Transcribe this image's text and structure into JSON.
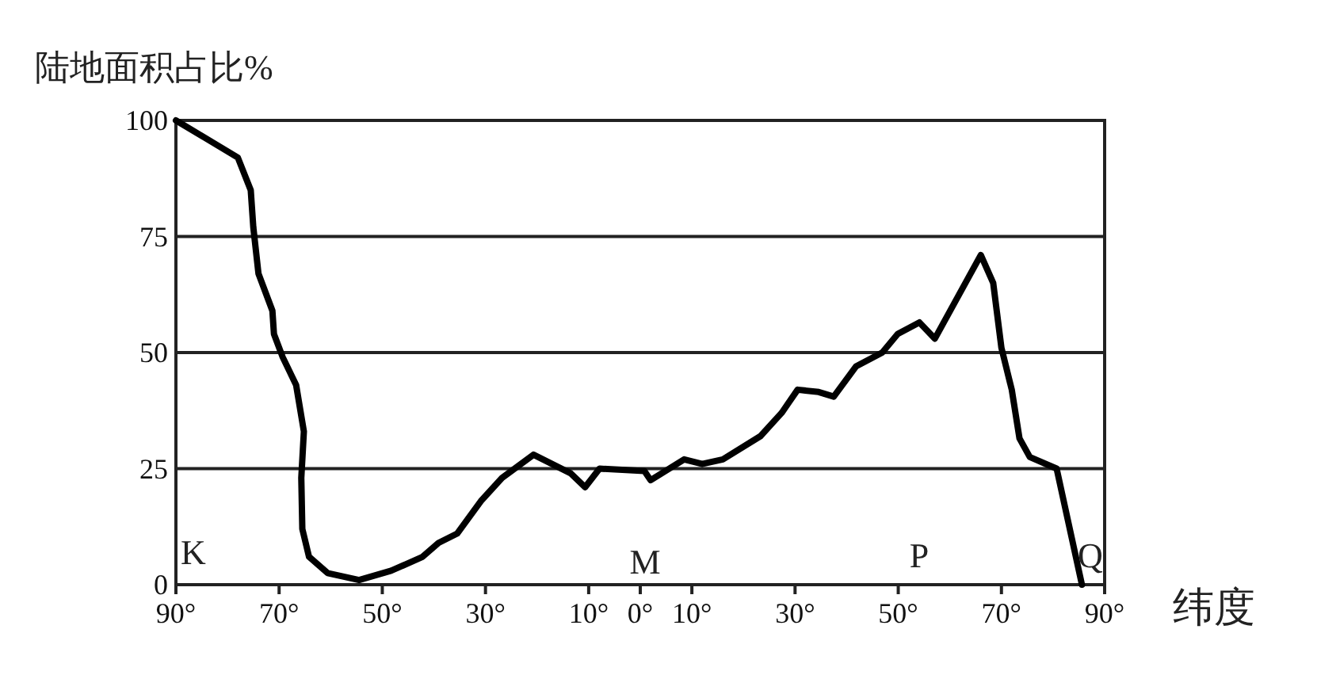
{
  "chart_data": {
    "type": "line",
    "ylabel": "陆地面积占比%",
    "xlabel": "纬度",
    "x": [
      -90,
      -78,
      -75.5,
      -75,
      -74,
      -71.3,
      -71,
      -69.3,
      -66.7,
      -65.2,
      -65.7,
      -65.5,
      -64.2,
      -60.6,
      -54.5,
      -48.3,
      -42.2,
      -39.1,
      -35.5,
      -30.9,
      -26.8,
      -20.7,
      -13.5,
      -10.7,
      -7.9,
      0.8,
      2,
      8.5,
      12,
      16,
      23.3,
      27.4,
      30.5,
      34.6,
      37.5,
      41.8,
      46.9,
      49.9,
      54.1,
      57.1,
      66,
      68.4,
      70,
      72,
      73.5,
      75.5,
      80.7,
      85.6
    ],
    "series": [
      {
        "color": "#000000",
        "values": [
          100,
          92,
          85,
          77,
          67,
          59,
          54,
          49,
          43,
          33,
          23,
          12,
          6,
          2.5,
          1,
          3,
          6,
          9,
          11,
          18,
          23,
          28,
          24,
          21,
          25,
          24.5,
          22.5,
          27,
          26,
          27,
          32,
          37,
          42,
          41.5,
          40.5,
          47,
          50,
          54,
          56.5,
          53,
          71,
          65,
          51,
          42,
          31.5,
          27.5,
          25,
          0
        ]
      }
    ],
    "xlim": [
      -90,
      90
    ],
    "ylim": [
      0,
      100
    ],
    "xticks": [
      {
        "value": -90,
        "label": "90°"
      },
      {
        "value": -70,
        "label": "70°"
      },
      {
        "value": -50,
        "label": "50°"
      },
      {
        "value": -30,
        "label": "30°"
      },
      {
        "value": -10,
        "label": "10°"
      },
      {
        "value": 0,
        "label": "0°"
      },
      {
        "value": 10,
        "label": "10°"
      },
      {
        "value": 30,
        "label": "30°"
      },
      {
        "value": 50,
        "label": "50°"
      },
      {
        "value": 70,
        "label": "70°"
      },
      {
        "value": 90,
        "label": "90°"
      }
    ],
    "yticks": [
      0,
      25,
      50,
      75,
      100
    ],
    "grid": "y",
    "marker": "none",
    "line_style": "solid",
    "annotations": [
      "K",
      "M",
      "P",
      "Q"
    ]
  }
}
